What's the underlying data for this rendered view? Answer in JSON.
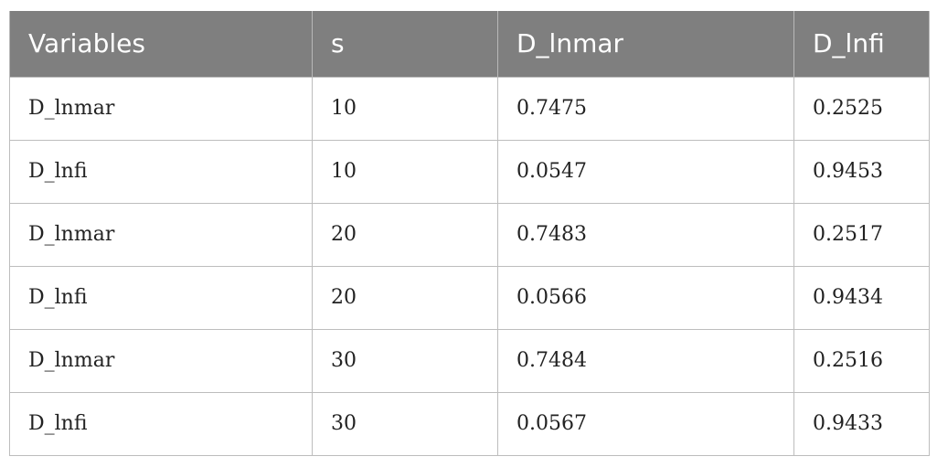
{
  "table": {
    "headers": [
      "Variables",
      "s",
      "D_lnmar",
      "D_lnfi"
    ],
    "rows": [
      [
        "D_lnmar",
        "10",
        "0.7475",
        "0.2525"
      ],
      [
        "D_lnfi",
        "10",
        "0.0547",
        "0.9453"
      ],
      [
        "D_lnmar",
        "20",
        "0.7483",
        "0.2517"
      ],
      [
        "D_lnfi",
        "20",
        "0.0566",
        "0.9434"
      ],
      [
        "D_lnmar",
        "30",
        "0.7484",
        "0.2516"
      ],
      [
        "D_lnfi",
        "30",
        "0.0567",
        "0.9433"
      ]
    ],
    "header_bg": "#7f7f7f",
    "header_text_color": "#ffffff"
  }
}
